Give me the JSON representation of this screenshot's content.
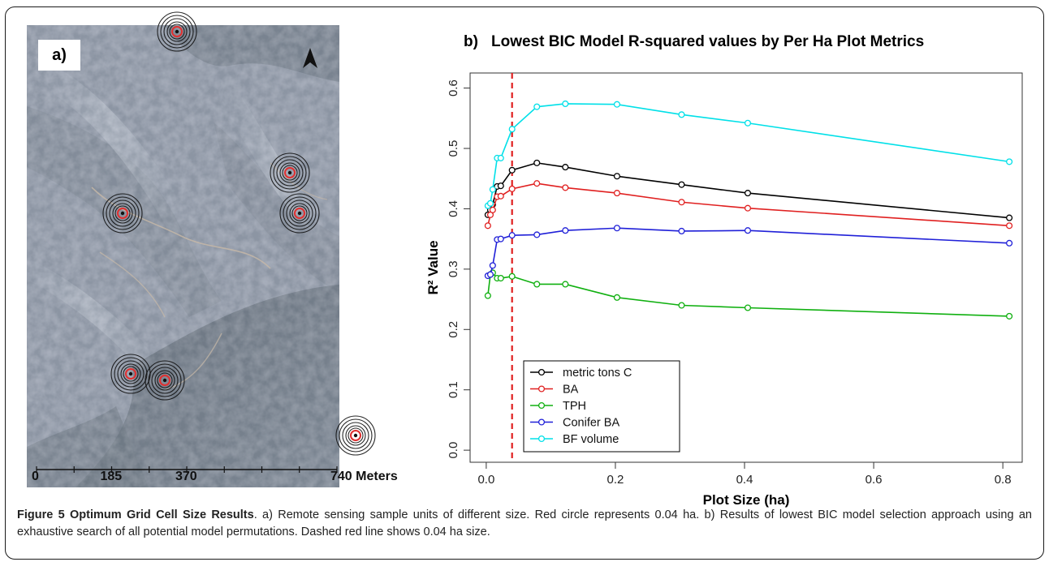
{
  "map": {
    "panel_label": "a)",
    "scale_labels": [
      "0",
      "185",
      "370",
      "740 Meters"
    ],
    "scale_values": [
      0,
      185,
      370,
      740
    ],
    "colors": {
      "inner_circle": "#e03030",
      "ring": "#111111"
    }
  },
  "chart_data": {
    "type": "line",
    "panel_label": "b)",
    "title": "Lowest BIC Model R-squared values by Per Ha Plot Metrics",
    "xlabel": "Plot Size (ha)",
    "ylabel": "R² Value",
    "xlim": [
      -0.025,
      0.83
    ],
    "ylim": [
      -0.02,
      0.625
    ],
    "xticks": [
      0.0,
      0.2,
      0.4,
      0.6,
      0.8
    ],
    "xtick_labels": [
      "0.0",
      "0.2",
      "0.4",
      "0.6",
      "0.8"
    ],
    "yticks": [
      0.0,
      0.1,
      0.2,
      0.3,
      0.4,
      0.5,
      0.6
    ],
    "ytick_labels": [
      "0.0",
      "0.1",
      "0.2",
      "0.3",
      "0.4",
      "0.5",
      "0.6"
    ],
    "grid": false,
    "legend_position": "bottom-left",
    "reference_line": {
      "x": 0.04,
      "color": "#e02020",
      "style": "dashed"
    },
    "x": [
      0.0025,
      0.0064,
      0.01,
      0.0169,
      0.0225,
      0.04,
      0.0784,
      0.1225,
      0.2025,
      0.3025,
      0.405,
      0.81
    ],
    "series": [
      {
        "name": "metric tons C",
        "color": "#000000",
        "values": [
          0.39,
          0.398,
          0.407,
          0.437,
          0.438,
          0.464,
          0.476,
          0.469,
          0.454,
          0.44,
          0.426,
          0.385
        ]
      },
      {
        "name": "BA",
        "color": "#e02020",
        "values": [
          0.372,
          0.39,
          0.398,
          0.42,
          0.421,
          0.433,
          0.442,
          0.435,
          0.426,
          0.411,
          0.401,
          0.372
        ]
      },
      {
        "name": "TPH",
        "color": "#10b010",
        "values": [
          0.256,
          0.291,
          0.294,
          0.285,
          0.285,
          0.288,
          0.275,
          0.275,
          0.253,
          0.24,
          0.236,
          0.222
        ]
      },
      {
        "name": "Conifer BA",
        "color": "#2020d8",
        "values": [
          0.289,
          0.291,
          0.306,
          0.349,
          0.35,
          0.356,
          0.357,
          0.364,
          0.368,
          0.363,
          0.364,
          0.343
        ]
      },
      {
        "name": "BF volume",
        "color": "#00e0e8",
        "values": [
          0.405,
          0.409,
          0.432,
          0.484,
          0.484,
          0.532,
          0.569,
          0.574,
          0.573,
          0.556,
          0.542,
          0.478
        ]
      }
    ]
  },
  "caption": {
    "label": "Figure 5 Optimum Grid Cell Size Results",
    "text": ". a) Remote sensing sample units of different size. Red circle represents 0.04 ha. b) Results of lowest BIC model selection approach using an exhaustive search of all potential model permutations. Dashed red line shows 0.04 ha size."
  }
}
